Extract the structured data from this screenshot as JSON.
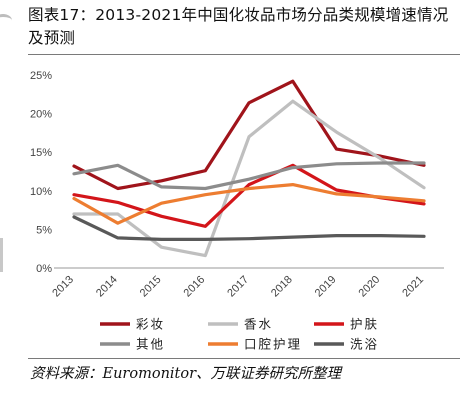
{
  "header": {
    "title": "图表17：2013-2021年中国化妆品市场分品类规模增速情况及预测"
  },
  "footer": {
    "source": "资料来源：Euromonitor、万联证券研究所整理"
  },
  "chart_data": {
    "type": "line",
    "title": "图表17：2013-2021年中国化妆品市场分品类规模增速情况及预测",
    "xlabel": "",
    "ylabel": "",
    "x": [
      "2013",
      "2014",
      "2015",
      "2016",
      "2017",
      "2018",
      "2019",
      "2020",
      "2021"
    ],
    "ylim": [
      0,
      25
    ],
    "yticks": [
      0,
      5,
      10,
      15,
      20,
      25
    ],
    "ytick_labels": [
      "0%",
      "5%",
      "10%",
      "15%",
      "20%",
      "25%"
    ],
    "grid": false,
    "legend_position": "bottom",
    "series": [
      {
        "name": "彩妆",
        "color": "#a0141b",
        "values": [
          13.2,
          10.3,
          11.3,
          12.6,
          21.4,
          24.2,
          15.4,
          14.5,
          13.3
        ]
      },
      {
        "name": "香水",
        "color": "#bfbfbf",
        "values": [
          7.0,
          7.0,
          2.7,
          1.6,
          17.0,
          21.6,
          17.6,
          14.2,
          10.4
        ]
      },
      {
        "name": "护肤",
        "color": "#d3151a",
        "values": [
          9.5,
          8.5,
          6.7,
          5.4,
          10.8,
          13.3,
          10.1,
          9.1,
          8.3
        ]
      },
      {
        "name": "其他",
        "color": "#8c8c8c",
        "values": [
          12.2,
          13.3,
          10.5,
          10.3,
          11.5,
          13.0,
          13.5,
          13.6,
          13.6
        ]
      },
      {
        "name": "口腔护理",
        "color": "#ed7d31",
        "values": [
          9.0,
          5.8,
          8.4,
          9.5,
          10.3,
          10.8,
          9.6,
          9.2,
          8.7
        ]
      },
      {
        "name": "洗浴",
        "color": "#595959",
        "values": [
          6.6,
          3.9,
          3.7,
          3.7,
          3.8,
          4.0,
          4.2,
          4.2,
          4.1
        ]
      }
    ]
  }
}
